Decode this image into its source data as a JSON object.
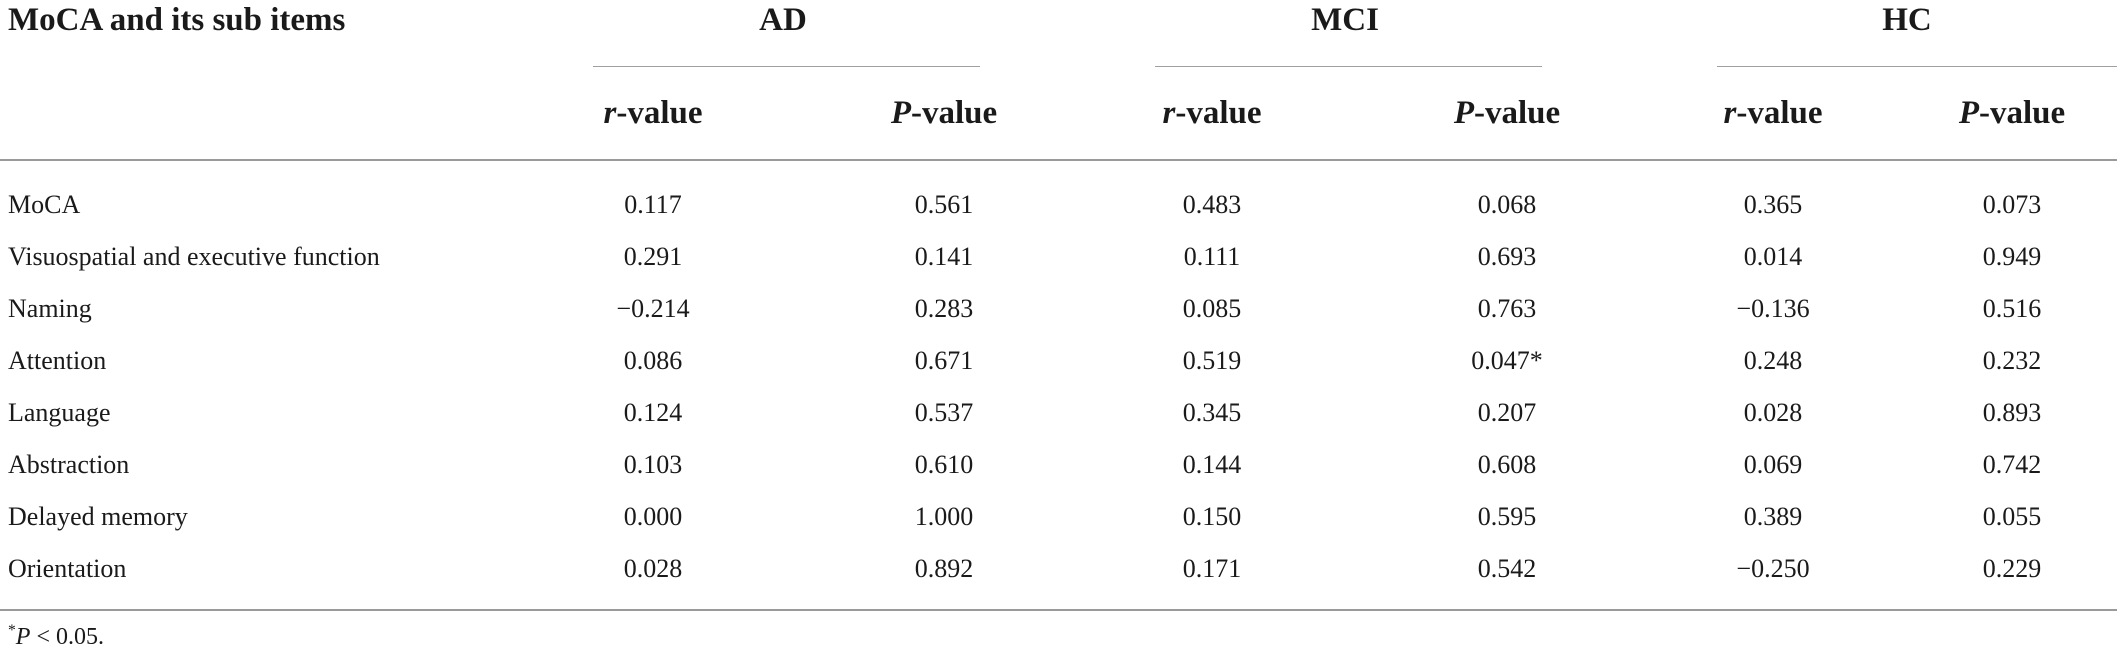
{
  "table": {
    "row_header": "MoCA and its sub items",
    "groups": [
      {
        "label": "AD"
      },
      {
        "label": "MCI"
      },
      {
        "label": "HC"
      }
    ],
    "subheaders": {
      "r_letter": "r",
      "p_letter": "P",
      "suffix": "-value"
    },
    "rows": [
      {
        "label": "MoCA",
        "values": [
          "0.117",
          "0.561",
          "0.483",
          "0.068",
          "0.365",
          "0.073"
        ]
      },
      {
        "label": "Visuospatial and executive function",
        "values": [
          "0.291",
          "0.141",
          "0.111",
          "0.693",
          "0.014",
          "0.949"
        ]
      },
      {
        "label": "Naming",
        "values": [
          "−0.214",
          "0.283",
          "0.085",
          "0.763",
          "−0.136",
          "0.516"
        ]
      },
      {
        "label": "Attention",
        "values": [
          "0.086",
          "0.671",
          "0.519",
          "0.047*",
          "0.248",
          "0.232"
        ]
      },
      {
        "label": "Language",
        "values": [
          "0.124",
          "0.537",
          "0.345",
          "0.207",
          "0.028",
          "0.893"
        ]
      },
      {
        "label": "Abstraction",
        "values": [
          "0.103",
          "0.610",
          "0.144",
          "0.608",
          "0.069",
          "0.742"
        ]
      },
      {
        "label": "Delayed memory",
        "values": [
          "0.000",
          "1.000",
          "0.150",
          "0.595",
          "0.389",
          "0.055"
        ]
      },
      {
        "label": "Orientation",
        "values": [
          "0.028",
          "0.892",
          "0.171",
          "0.542",
          "−0.250",
          "0.229"
        ]
      }
    ],
    "footnote": {
      "mark": "*",
      "var": "P",
      "text": " < 0.05."
    }
  }
}
